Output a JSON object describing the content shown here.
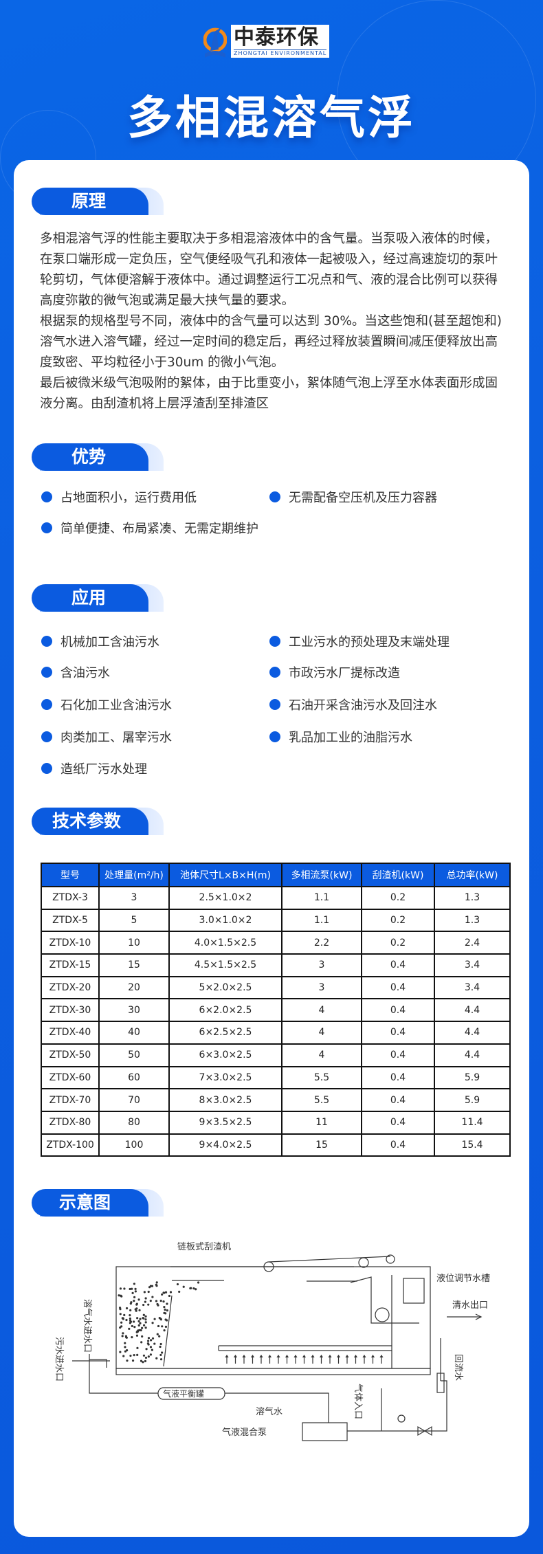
{
  "brand": {
    "name_cn": "中泰环保",
    "name_en": "ZHONGTAI ENVIRONMENTAL"
  },
  "title": "多相混溶气浮",
  "colors": {
    "primary": "#0b5be0",
    "background": "#0a5fe0"
  },
  "principle": {
    "heading": "原理",
    "paragraphs": [
      "多相混溶气浮的性能主要取决于多相混溶液体中的含气量。当泵吸入液体的时候，在泵口端形成一定负压，空气便经吸气孔和液体一起被吸入，经过高速旋切的泵叶轮剪切，气体便溶解于液体中。通过调整运行工况点和气、液的混合比例可以获得高度弥散的微气泡或满足最大挟气量的要求。",
      "根据泵的规格型号不同，液体中的含气量可以达到 30%。当这些饱和(甚至超饱和)溶气水进入溶气罐，经过一定时间的稳定后，再经过释放装置瞬间减压便释放出高度致密、平均粒径小于30um 的微小气泡。",
      "最后被微米级气泡吸附的絮体，由于比重变小，絮体随气泡上浮至水体表面形成固液分离。由刮渣机将上层浮渣刮至排渣区"
    ]
  },
  "advantages": {
    "heading": "优势",
    "items": [
      "占地面积小，运行费用低",
      "无需配备空压机及压力容器",
      "简单便捷、布局紧凑、无需定期维护"
    ]
  },
  "applications": {
    "heading": "应用",
    "items": [
      "机械加工含油污水",
      "工业污水的预处理及末端处理",
      "含油污水",
      "市政污水厂提标改造",
      "石化加工业含油污水",
      "石油开采含油污水及回注水",
      "肉类加工、屠宰污水",
      "乳品加工业的油脂污水",
      "造纸厂污水处理"
    ]
  },
  "specs": {
    "heading": "技术参数",
    "columns": [
      "型号",
      "处理量(m²/h)",
      "池体尺寸L×B×H(m)",
      "多相流泵(kW)",
      "刮渣机(kW)",
      "总功率(kW)"
    ],
    "rows": [
      [
        "ZTDX-3",
        "3",
        "2.5×1.0×2",
        "1.1",
        "0.2",
        "1.3"
      ],
      [
        "ZTDX-5",
        "5",
        "3.0×1.0×2",
        "1.1",
        "0.2",
        "1.3"
      ],
      [
        "ZTDX-10",
        "10",
        "4.0×1.5×2.5",
        "2.2",
        "0.2",
        "2.4"
      ],
      [
        "ZTDX-15",
        "15",
        "4.5×1.5×2.5",
        "3",
        "0.4",
        "3.4"
      ],
      [
        "ZTDX-20",
        "20",
        "5×2.0×2.5",
        "3",
        "0.4",
        "3.4"
      ],
      [
        "ZTDX-30",
        "30",
        "6×2.0×2.5",
        "4",
        "0.4",
        "4.4"
      ],
      [
        "ZTDX-40",
        "40",
        "6×2.5×2.5",
        "4",
        "0.4",
        "4.4"
      ],
      [
        "ZTDX-50",
        "50",
        "6×3.0×2.5",
        "4",
        "0.4",
        "4.4"
      ],
      [
        "ZTDX-60",
        "60",
        "7×3.0×2.5",
        "5.5",
        "0.4",
        "5.9"
      ],
      [
        "ZTDX-70",
        "70",
        "8×3.0×2.5",
        "5.5",
        "0.4",
        "5.9"
      ],
      [
        "ZTDX-80",
        "80",
        "9×3.5×2.5",
        "11",
        "0.4",
        "11.4"
      ],
      [
        "ZTDX-100",
        "100",
        "9×4.0×2.5",
        "15",
        "0.4",
        "15.4"
      ]
    ]
  },
  "schematic": {
    "heading": "示意图",
    "labels": {
      "scraper": "链板式刮渣机",
      "level_tank": "液位调节水槽",
      "clear_outlet": "清水出口",
      "return_water": "回流水",
      "sewage_inlet": "污水进水口",
      "dissolved_inlet": "溶气水进水口",
      "balance_tank": "气液平衡罐",
      "dissolved_water": "溶气水",
      "mix_pump": "气液混合泵",
      "gas_inlet": "气体入口"
    }
  }
}
